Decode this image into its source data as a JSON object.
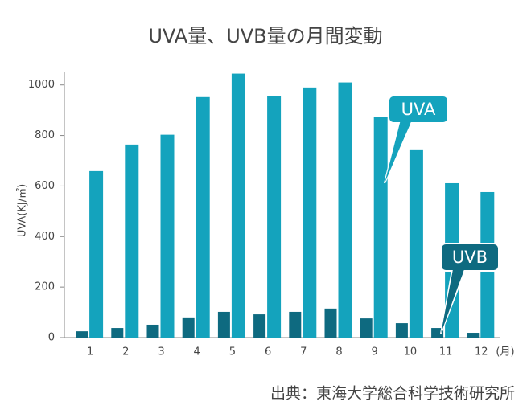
{
  "chart_data": {
    "type": "bar",
    "title": "UVA量、UVB量の月間変動",
    "y_label": "UVA(KJ/㎡)",
    "x_unit": "(月)",
    "source": "出典：東海大学総合科学技術研究所",
    "categories": [
      "1",
      "2",
      "3",
      "4",
      "5",
      "6",
      "7",
      "8",
      "9",
      "10",
      "11",
      "12"
    ],
    "series": [
      {
        "name": "UVB",
        "color": "#0e6a80",
        "values": [
          25,
          38,
          51,
          80,
          102,
          92,
          102,
          115,
          76,
          57,
          38,
          19
        ]
      },
      {
        "name": "UVA",
        "color": "#14a3bd",
        "values": [
          659,
          764,
          803,
          952,
          1045,
          955,
          990,
          1010,
          873,
          745,
          611,
          576
        ]
      }
    ],
    "ylim": [
      0,
      1050
    ],
    "yticks": [
      0,
      200,
      400,
      600,
      800,
      1000
    ]
  }
}
